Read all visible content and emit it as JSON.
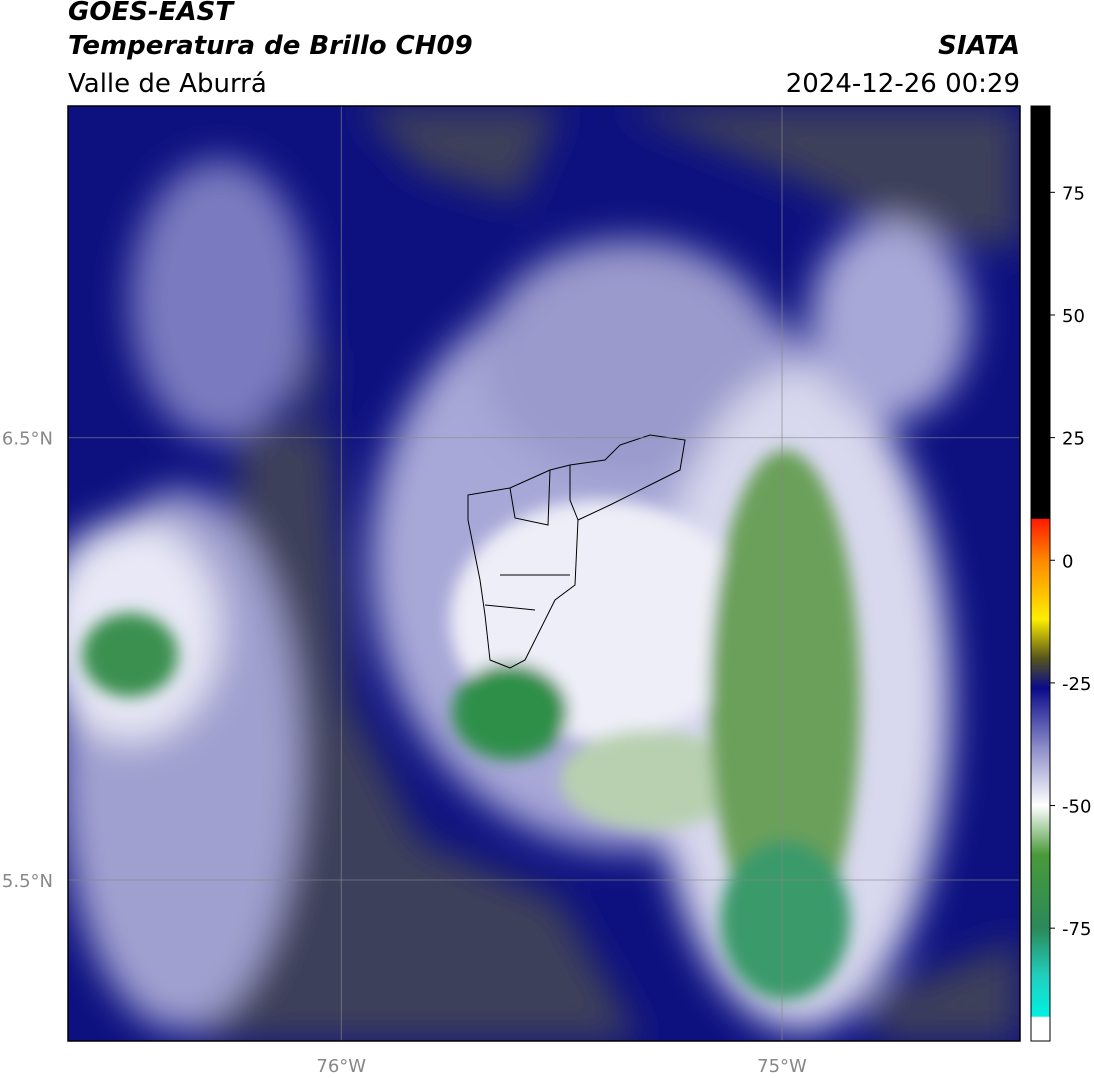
{
  "header": {
    "title": "GOES-EAST",
    "subtitle": "Temperatura de Brillo CH09",
    "region": "Valle de Aburrá",
    "source": "SIATA",
    "datetime": "2024-12-26 00:29"
  },
  "map": {
    "xlim": [
      -76.62,
      -74.46
    ],
    "ylim": [
      5.136,
      7.25
    ],
    "lon_ticks": [
      {
        "value": -76,
        "label": "76°W"
      },
      {
        "value": -75,
        "label": "75°W"
      }
    ],
    "lat_ticks": [
      {
        "value": 6.5,
        "label": "6.5°N"
      },
      {
        "value": 5.5,
        "label": "5.5°N"
      }
    ]
  },
  "colorbar": {
    "lim": [
      -98,
      92.6
    ],
    "ticks": [
      75,
      50,
      25,
      0,
      -25,
      -50,
      -75
    ],
    "stops": [
      {
        "value": 92.6,
        "color": "#000000"
      },
      {
        "value": 8.5,
        "color": "#000000"
      },
      {
        "value": 8.4,
        "color": "#ff1a00"
      },
      {
        "value": 0,
        "color": "#ff8800"
      },
      {
        "value": -12,
        "color": "#ffee00"
      },
      {
        "value": -20,
        "color": "#55551a"
      },
      {
        "value": -26,
        "color": "#0a0a8a"
      },
      {
        "value": -38,
        "color": "#8a8ac8"
      },
      {
        "value": -50,
        "color": "#ffffff"
      },
      {
        "value": -60,
        "color": "#4a9a3a"
      },
      {
        "value": -75,
        "color": "#2a8a5a"
      },
      {
        "value": -85,
        "color": "#20d0c0"
      },
      {
        "value": -93,
        "color": "#00f0e0"
      },
      {
        "value": -93.1,
        "color": "#ffffff"
      },
      {
        "value": -98,
        "color": "#ffffff"
      }
    ]
  }
}
